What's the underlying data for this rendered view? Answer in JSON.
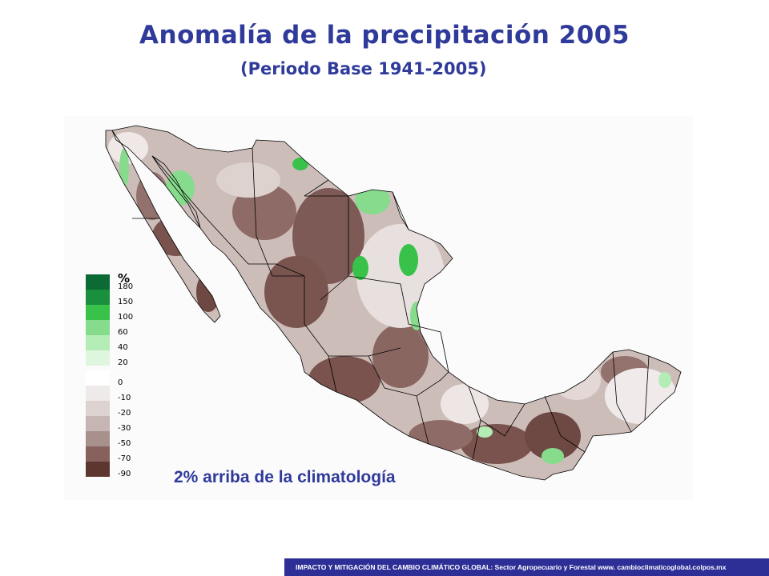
{
  "title": "Anomalía de la precipitación 2005",
  "subtitle": "(Periodo Base 1941-2005)",
  "map": {
    "annotation": "2% arriba de la climatología"
  },
  "legend": {
    "unit": "%",
    "classes": [
      {
        "label": "180",
        "color": "#0c6b35"
      },
      {
        "label": "150",
        "color": "#1a8f3e"
      },
      {
        "label": "100",
        "color": "#38c24a"
      },
      {
        "label": "60",
        "color": "#86dc8c"
      },
      {
        "label": "40",
        "color": "#b4ecb6"
      },
      {
        "label": "20",
        "color": "#def6de"
      },
      {
        "label": "0",
        "color": "#ffffff"
      },
      {
        "label": "-10",
        "color": "#eeeaea"
      },
      {
        "label": "-20",
        "color": "#dcd2d0"
      },
      {
        "label": "-30",
        "color": "#c6b6b3"
      },
      {
        "label": "-50",
        "color": "#a8908c"
      },
      {
        "label": "-70",
        "color": "#87625d"
      },
      {
        "label": "-90",
        "color": "#5e3630"
      }
    ]
  },
  "footer": {
    "text": "IMPACTO Y MITIGACIÓN DEL CAMBIO CLIMÁTICO GLOBAL: Sector Agropecuario y Forestal www. cambioclimaticoglobal.colpos.mx"
  }
}
